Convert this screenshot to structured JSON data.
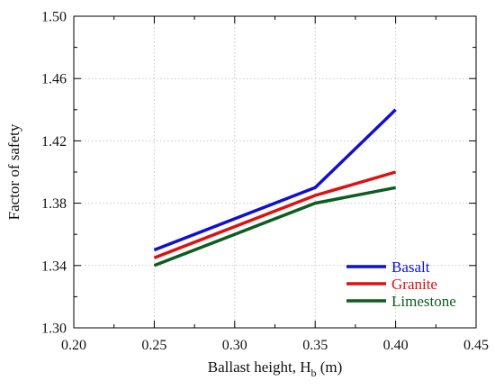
{
  "chart_data": {
    "type": "line",
    "title": "",
    "xlabel": "Ballast height, H",
    "xlabel_sub": "b",
    "xlabel_unit": " (m)",
    "ylabel": "Factor of safety",
    "xlim": [
      0.2,
      0.45
    ],
    "ylim": [
      1.3,
      1.5
    ],
    "xticks": [
      "0.20",
      "0.25",
      "0.30",
      "0.35",
      "0.40",
      "0.45"
    ],
    "yticks": [
      "1.30",
      "1.34",
      "1.38",
      "1.42",
      "1.46",
      "1.50"
    ],
    "grid": true,
    "legend_position": "bottom-right",
    "x": [
      0.25,
      0.35,
      0.4
    ],
    "series": [
      {
        "name": "Basalt",
        "color": "#1111cc",
        "values": [
          1.35,
          1.39,
          1.44
        ]
      },
      {
        "name": "Granite",
        "color": "#dd1111",
        "values": [
          1.345,
          1.385,
          1.4
        ]
      },
      {
        "name": "Limestone",
        "color": "#0d5e1e",
        "values": [
          1.34,
          1.38,
          1.39
        ]
      }
    ]
  }
}
